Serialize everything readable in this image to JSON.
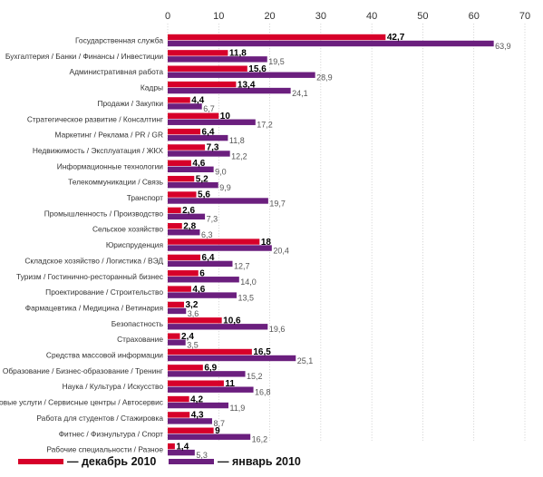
{
  "chart_data": {
    "type": "bar",
    "orientation": "horizontal",
    "xlim": [
      0,
      70
    ],
    "ticks": [
      "0",
      "10",
      "20",
      "30",
      "40",
      "50",
      "60",
      "70"
    ],
    "grid": true,
    "legend_position": "bottom-left",
    "categories": [
      "Государственная служба",
      "Бухгалтерия / Банки / Финансы / Инвестиции",
      "Административная работа",
      "Кадры",
      "Продажи / Закупки",
      "Стратегическое развитие / Консалтинг",
      "Маркетинг / Реклама / PR / GR",
      "Недвижимость / Эксплуатация / ЖКХ",
      "Информационные технологии",
      "Телекоммуникации / Связь",
      "Транспорт",
      "Промышленность / Производство",
      "Сельское хозяйство",
      "Юриспруденция",
      "Складское хозяйство / Логистика / ВЭД",
      "Туризм / Гостинично-ресторанный бизнес",
      "Проектирование / Строительство",
      "Фармацевтика / Медицина / Ветинария",
      "Безопастность",
      "Страхование",
      "Средства массовой информации",
      "Образование / Бизнес-образование / Тренинг",
      "Наука / Культура / Искусство",
      "Бытовые услуги / Сервисные центры / Автосервис",
      "Работа для студентов / Стажировка",
      "Фитнес / Физнультура / Спорт",
      "Рабочие специальности / Разное"
    ],
    "series": [
      {
        "name": "— декабрь 2010",
        "color": "#d7002a",
        "values": [
          42.7,
          11.8,
          15.6,
          13.4,
          4.4,
          10,
          6.4,
          7.3,
          4.6,
          5.2,
          5.6,
          2.6,
          2.8,
          18,
          6.4,
          6,
          4.6,
          3.2,
          10.6,
          2.4,
          16.5,
          6.9,
          11,
          4.2,
          4.3,
          9,
          1.4
        ],
        "labels": [
          "42,7",
          "11,8",
          "15,6",
          "13,4",
          "4,4",
          "10",
          "6,4",
          "7,3",
          "4,6",
          "5,2",
          "5,6",
          "2,6",
          "2,8",
          "18",
          "6,4",
          "6",
          "4,6",
          "3,2",
          "10,6",
          "2,4",
          "16,5",
          "6,9",
          "11",
          "4,2",
          "4,3",
          "9",
          "1,4"
        ]
      },
      {
        "name": "— январь 2010",
        "color": "#6b1f7e",
        "values": [
          63.9,
          19.5,
          28.9,
          24.1,
          6.7,
          17.2,
          11.8,
          12.2,
          9.0,
          9.9,
          19.7,
          7.3,
          6.3,
          20.4,
          12.7,
          14.0,
          13.5,
          3.6,
          19.6,
          3.5,
          25.1,
          15.2,
          16.8,
          11.9,
          8.7,
          16.2,
          5.3
        ],
        "labels": [
          "63,9",
          "19,5",
          "28,9",
          "24,1",
          "6,7",
          "17,2",
          "11,8",
          "12,2",
          "9,0",
          "9,9",
          "19,7",
          "7,3",
          "6,3",
          "20,4",
          "12,7",
          "14,0",
          "13,5",
          "3,6",
          "19,6",
          "3,5",
          "25,1",
          "15,2",
          "16,8",
          "11,9",
          "8,7",
          "16,2",
          "5,3"
        ]
      }
    ]
  }
}
